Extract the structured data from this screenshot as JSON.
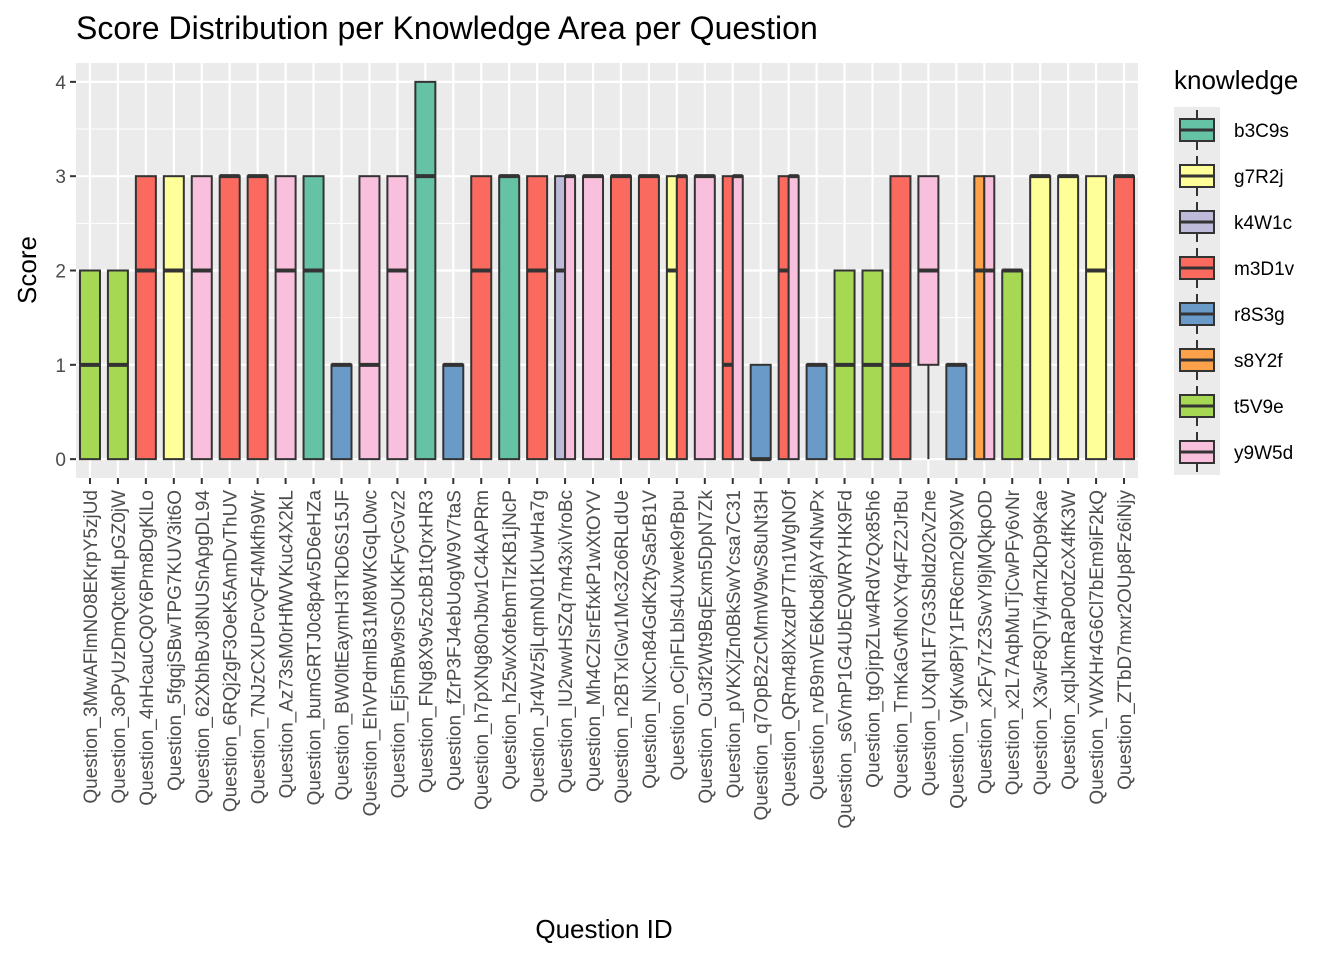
{
  "chart_data": {
    "type": "boxplot",
    "title": "Score Distribution per Knowledge Area per Question",
    "xlabel": "Question ID",
    "ylabel": "Score",
    "ylim": [
      -0.2,
      4.2
    ],
    "yticks": [
      0,
      1,
      2,
      3,
      4
    ],
    "grid": true,
    "legend": {
      "title": "knowledge",
      "position": "right",
      "items": [
        {
          "name": "b3C9s",
          "color": "#66C2A5"
        },
        {
          "name": "g7R2j",
          "color": "#FFFF99"
        },
        {
          "name": "k4W1c",
          "color": "#BEBADA"
        },
        {
          "name": "m3D1v",
          "color": "#FB6A5E"
        },
        {
          "name": "r8S3g",
          "color": "#6A9BC8"
        },
        {
          "name": "s8Y2f",
          "color": "#FDA14A"
        },
        {
          "name": "t5V9e",
          "color": "#A6D854"
        },
        {
          "name": "y9W5d",
          "color": "#F9C0DD"
        }
      ]
    },
    "categories": [
      "Question_3MwAFlmNO8EKrpY5zjUd",
      "Question_3oPyUzDmQtcMfLpGZ0jW",
      "Question_4nHcauCQ0Y6Pm8DgKlLo",
      "Question_5fgqjSBwTPG7KUV3it6O",
      "Question_62XbhBvJ8NUSnApgDL94",
      "Question_6RQj2gF3OeK5AmDvThUV",
      "Question_7NJzCXUPcvQF4Mkfh9Wr",
      "Question_Az73sM0rHfWVKuc4X2kL",
      "Question_bumGRTJ0c8p4v5D6eHZa",
      "Question_BW0ltEaymH3TkD6S15JF",
      "Question_EhVPdmlB31M8WKGqL0wc",
      "Question_Ej5mBw9rsOUKkFycGvz2",
      "Question_FNg8X9v5zcbB1tQrxHR3",
      "Question_fZrP3FJ4ebUogW9V7taS",
      "Question_h7pXNg80nJbw1C4kAPRm",
      "Question_hZ5wXofebmTlzKB1jNcP",
      "Question_Jr4Wz5jLqmN01KUwHa7g",
      "Question_lU2wwHSZq7m43xiVroBc",
      "Question_Mh4CZIsrEfxkP1wXtOYV",
      "Question_n2BTxIGw1Mc3Zo6RLdUe",
      "Question_NixCn84GdK2tySa5rB1V",
      "Question_oCjnFLbls4Uxwek9rBpu",
      "Question_Ou3f2Wt9BqExm5DpN7Zk",
      "Question_pVKXjZn0BkSwYcsa7C31",
      "Question_q7OpB2zCMmW9wS8uNt3H",
      "Question_QRm48lXxzdP7Tn1WgNOf",
      "Question_rvB9mVE6Kbd8jAY4NwPx",
      "Question_s6VmP1G4UbEQWRYHK9Fd",
      "Question_tgOjrpZLw4RdVzQx85h6",
      "Question_TmKaGvfNoXYq4FZ2JrBu",
      "Question_UXqN1F7G3Sbldz02vZne",
      "Question_VgKw8PjY1FR6cm2Ql9XW",
      "Question_x2Fy7rZ3SwYl9jMQkpOD",
      "Question_x2L7AqbMuTjCwPFy6vNr",
      "Question_X3wF8QlTyi4mZkDp9Kae",
      "Question_xqlJkmRaP0otZcX4fK3W",
      "Question_YWXHr4G6Cl7bEm9iF2kQ",
      "Question_ZTbD7mxr2OUp8Fz6iNjy"
    ],
    "groups": [
      [
        {
          "k": "t5V9e",
          "min": 0,
          "q1": 0,
          "med": 1,
          "q3": 2,
          "max": 2
        }
      ],
      [
        {
          "k": "t5V9e",
          "min": 0,
          "q1": 0,
          "med": 1,
          "q3": 2,
          "max": 2
        }
      ],
      [
        {
          "k": "m3D1v",
          "min": 0,
          "q1": 0,
          "med": 2,
          "q3": 3,
          "max": 3
        }
      ],
      [
        {
          "k": "g7R2j",
          "min": 0,
          "q1": 0,
          "med": 2,
          "q3": 3,
          "max": 3
        }
      ],
      [
        {
          "k": "y9W5d",
          "min": 0,
          "q1": 0,
          "med": 2,
          "q3": 3,
          "max": 3
        }
      ],
      [
        {
          "k": "m3D1v",
          "min": 0,
          "q1": 0,
          "med": 3,
          "q3": 3,
          "max": 3
        }
      ],
      [
        {
          "k": "m3D1v",
          "min": 0,
          "q1": 0,
          "med": 3,
          "q3": 3,
          "max": 3
        }
      ],
      [
        {
          "k": "y9W5d",
          "min": 0,
          "q1": 0,
          "med": 2,
          "q3": 3,
          "max": 3
        }
      ],
      [
        {
          "k": "b3C9s",
          "min": 0,
          "q1": 0,
          "med": 2,
          "q3": 3,
          "max": 3
        }
      ],
      [
        {
          "k": "r8S3g",
          "min": 0,
          "q1": 0,
          "med": 1,
          "q3": 1,
          "max": 1
        }
      ],
      [
        {
          "k": "y9W5d",
          "min": 0,
          "q1": 0,
          "med": 1,
          "q3": 3,
          "max": 3
        }
      ],
      [
        {
          "k": "y9W5d",
          "min": 0,
          "q1": 0,
          "med": 2,
          "q3": 3,
          "max": 3
        }
      ],
      [
        {
          "k": "b3C9s",
          "min": 0,
          "q1": 0,
          "med": 3,
          "q3": 4,
          "max": 4
        }
      ],
      [
        {
          "k": "r8S3g",
          "min": 0,
          "q1": 0,
          "med": 1,
          "q3": 1,
          "max": 1
        }
      ],
      [
        {
          "k": "m3D1v",
          "min": 0,
          "q1": 0,
          "med": 2,
          "q3": 3,
          "max": 3
        }
      ],
      [
        {
          "k": "b3C9s",
          "min": 0,
          "q1": 0,
          "med": 3,
          "q3": 3,
          "max": 3
        }
      ],
      [
        {
          "k": "m3D1v",
          "min": 0,
          "q1": 0,
          "med": 2,
          "q3": 3,
          "max": 3
        }
      ],
      [
        {
          "k": "k4W1c",
          "min": 0,
          "q1": 0,
          "med": 2,
          "q3": 3,
          "max": 3
        },
        {
          "k": "y9W5d",
          "min": 0,
          "q1": 0,
          "med": 3,
          "q3": 3,
          "max": 3
        }
      ],
      [
        {
          "k": "y9W5d",
          "min": 0,
          "q1": 0,
          "med": 3,
          "q3": 3,
          "max": 3
        }
      ],
      [
        {
          "k": "m3D1v",
          "min": 0,
          "q1": 0,
          "med": 3,
          "q3": 3,
          "max": 3
        }
      ],
      [
        {
          "k": "m3D1v",
          "min": 0,
          "q1": 0,
          "med": 3,
          "q3": 3,
          "max": 3
        }
      ],
      [
        {
          "k": "g7R2j",
          "min": 0,
          "q1": 0,
          "med": 2,
          "q3": 3,
          "max": 3
        },
        {
          "k": "m3D1v",
          "min": 0,
          "q1": 0,
          "med": 3,
          "q3": 3,
          "max": 3
        }
      ],
      [
        {
          "k": "y9W5d",
          "min": 0,
          "q1": 0,
          "med": 3,
          "q3": 3,
          "max": 3
        }
      ],
      [
        {
          "k": "m3D1v",
          "min": 0,
          "q1": 0,
          "med": 1,
          "q3": 3,
          "max": 3
        },
        {
          "k": "y9W5d",
          "min": 0,
          "q1": 0,
          "med": 3,
          "q3": 3,
          "max": 3
        }
      ],
      [
        {
          "k": "r8S3g",
          "min": 0,
          "q1": 0,
          "med": 0,
          "q3": 1,
          "max": 1
        }
      ],
      [
        {
          "k": "m3D1v",
          "min": 0,
          "q1": 0,
          "med": 2,
          "q3": 3,
          "max": 3
        },
        {
          "k": "y9W5d",
          "min": 0,
          "q1": 0,
          "med": 3,
          "q3": 3,
          "max": 3
        }
      ],
      [
        {
          "k": "r8S3g",
          "min": 0,
          "q1": 0,
          "med": 1,
          "q3": 1,
          "max": 1
        }
      ],
      [
        {
          "k": "t5V9e",
          "min": 0,
          "q1": 0,
          "med": 1,
          "q3": 2,
          "max": 2
        }
      ],
      [
        {
          "k": "t5V9e",
          "min": 0,
          "q1": 0,
          "med": 1,
          "q3": 2,
          "max": 2
        }
      ],
      [
        {
          "k": "m3D1v",
          "min": 0,
          "q1": 0,
          "med": 1,
          "q3": 3,
          "max": 3
        }
      ],
      [
        {
          "k": "y9W5d",
          "min": 0,
          "q1": 1,
          "med": 2,
          "q3": 3,
          "max": 3
        }
      ],
      [
        {
          "k": "r8S3g",
          "min": 0,
          "q1": 0,
          "med": 1,
          "q3": 1,
          "max": 1
        }
      ],
      [
        {
          "k": "s8Y2f",
          "min": 0,
          "q1": 0,
          "med": 2,
          "q3": 3,
          "max": 3
        },
        {
          "k": "y9W5d",
          "min": 0,
          "q1": 0,
          "med": 2,
          "q3": 3,
          "max": 3
        }
      ],
      [
        {
          "k": "t5V9e",
          "min": 0,
          "q1": 0,
          "med": 2,
          "q3": 2,
          "max": 2
        }
      ],
      [
        {
          "k": "g7R2j",
          "min": 0,
          "q1": 0,
          "med": 3,
          "q3": 3,
          "max": 3
        }
      ],
      [
        {
          "k": "g7R2j",
          "min": 0,
          "q1": 0,
          "med": 3,
          "q3": 3,
          "max": 3
        }
      ],
      [
        {
          "k": "g7R2j",
          "min": 0,
          "q1": 0,
          "med": 2,
          "q3": 3,
          "max": 3
        }
      ],
      [
        {
          "k": "m3D1v",
          "min": 0,
          "q1": 0,
          "med": 3,
          "q3": 3,
          "max": 3
        }
      ]
    ]
  }
}
